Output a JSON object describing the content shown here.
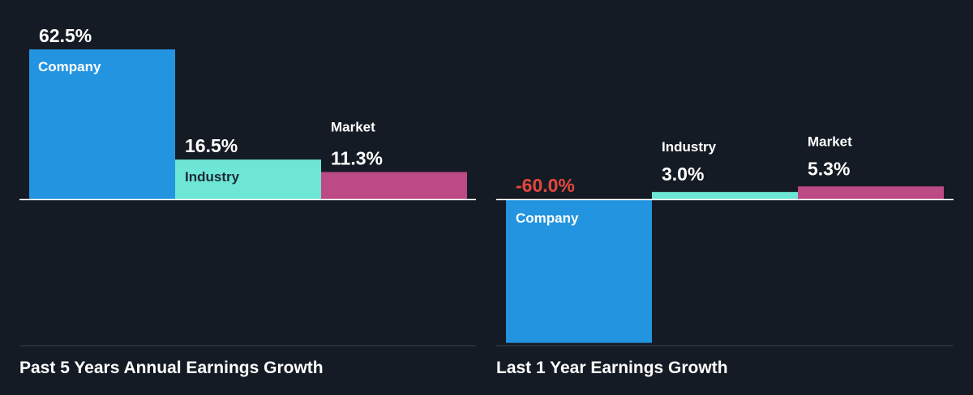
{
  "colors": {
    "background": "#151b24",
    "company": "#2394e0",
    "industry": "#6ee6d6",
    "market": "#bb4a86",
    "axis": "#ffffff",
    "baseline": "#3a4048",
    "negative_text": "#e5493e",
    "text": "#ffffff",
    "dark_text": "#1f2a36"
  },
  "chart_data": [
    {
      "type": "bar",
      "title": "Past 5 Years Annual Earnings Growth",
      "categories": [
        "Company",
        "Industry",
        "Market"
      ],
      "values": [
        62.5,
        16.5,
        11.3
      ],
      "value_labels": [
        "62.5%",
        "16.5%",
        "11.3%"
      ],
      "unit": "%",
      "ylim": [
        -60,
        62.5
      ],
      "grid": false,
      "legend": "none"
    },
    {
      "type": "bar",
      "title": "Last 1 Year Earnings Growth",
      "categories": [
        "Company",
        "Industry",
        "Market"
      ],
      "values": [
        -60.0,
        3.0,
        5.3
      ],
      "value_labels": [
        "-60.0%",
        "3.0%",
        "5.3%"
      ],
      "unit": "%",
      "ylim": [
        -60,
        62.5
      ],
      "grid": false,
      "legend": "none"
    }
  ]
}
